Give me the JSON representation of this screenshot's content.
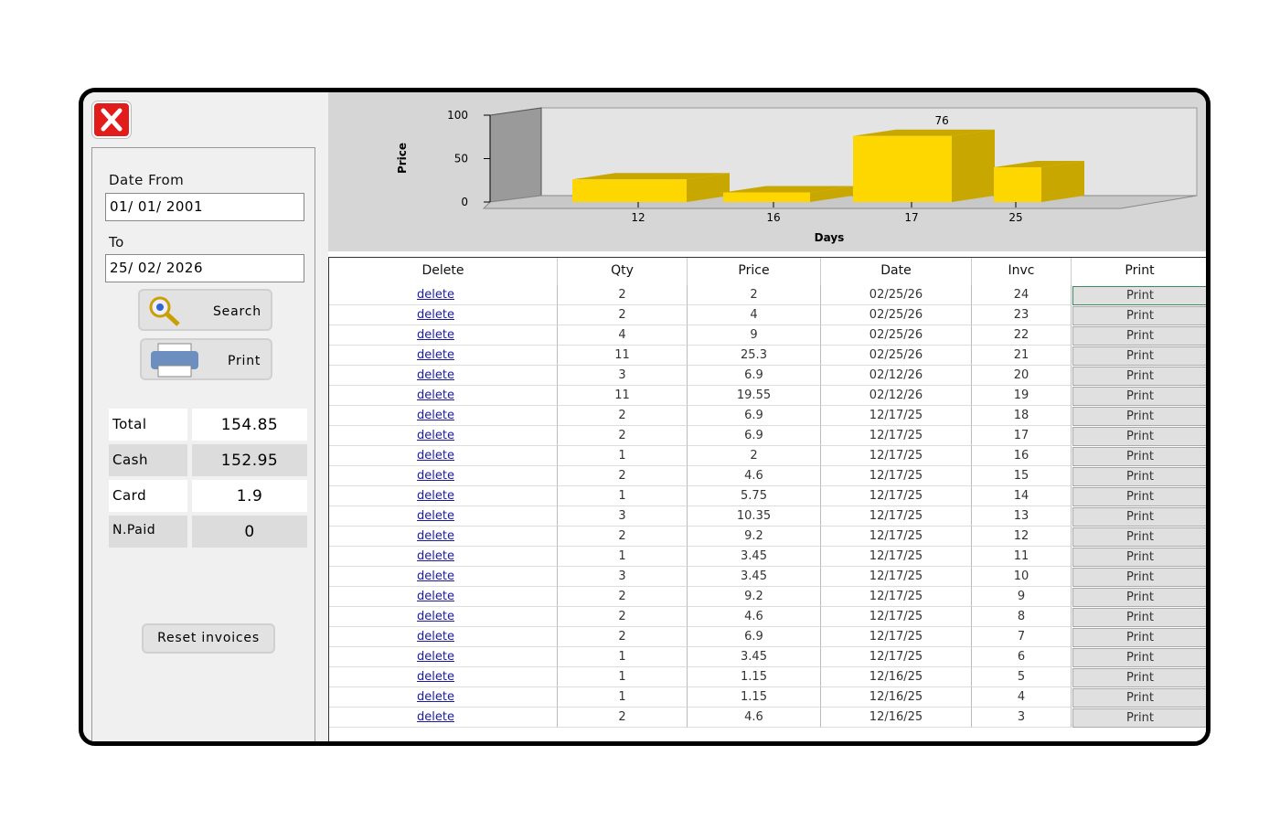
{
  "sidebar": {
    "date_from_label": "Date From",
    "date_from": "01/ 01/ 2001",
    "to_label": "To",
    "date_to": "25/ 02/ 2026",
    "search": "Search",
    "print": "Print",
    "totals": [
      {
        "label": "Total",
        "value": 154.85
      },
      {
        "label": "Cash",
        "value": 152.95
      },
      {
        "label": "Card",
        "value": 1.9
      },
      {
        "label": "N.Paid",
        "value": 0
      }
    ],
    "reset": "Reset invoices"
  },
  "chart_data": {
    "type": "bar3d",
    "xlabel": "Days",
    "ylabel": "Price",
    "categories": [
      "12",
      "16",
      "17",
      "25"
    ],
    "values": [
      26,
      11,
      76,
      40
    ],
    "value_labels": [
      null,
      null,
      "76",
      null
    ],
    "color": "#ffd700",
    "side_color": "#c8a800",
    "ylim": [
      0,
      100
    ],
    "yticks": [
      0,
      50,
      100
    ]
  },
  "table": {
    "headers": [
      "Delete",
      "Qty",
      "Price",
      "Date",
      "Invc",
      "Print"
    ],
    "rows": [
      [
        "delete",
        2,
        2,
        "02/25/26",
        24,
        "Print"
      ],
      [
        "delete",
        2,
        4,
        "02/25/26",
        23,
        "Print"
      ],
      [
        "delete",
        4,
        9,
        "02/25/26",
        22,
        "Print"
      ],
      [
        "delete",
        11,
        25.3,
        "02/25/26",
        21,
        "Print"
      ],
      [
        "delete",
        3,
        6.9,
        "02/12/26",
        20,
        "Print"
      ],
      [
        "delete",
        11,
        19.55,
        "02/12/26",
        19,
        "Print"
      ],
      [
        "delete",
        2,
        6.9,
        "12/17/25",
        18,
        "Print"
      ],
      [
        "delete",
        2,
        6.9,
        "12/17/25",
        17,
        "Print"
      ],
      [
        "delete",
        1,
        2,
        "12/17/25",
        16,
        "Print"
      ],
      [
        "delete",
        2,
        4.6,
        "12/17/25",
        15,
        "Print"
      ],
      [
        "delete",
        1,
        5.75,
        "12/17/25",
        14,
        "Print"
      ],
      [
        "delete",
        3,
        10.35,
        "12/17/25",
        13,
        "Print"
      ],
      [
        "delete",
        2,
        9.2,
        "12/17/25",
        12,
        "Print"
      ],
      [
        "delete",
        1,
        3.45,
        "12/17/25",
        11,
        "Print"
      ],
      [
        "delete",
        3,
        3.45,
        "12/17/25",
        10,
        "Print"
      ],
      [
        "delete",
        2,
        9.2,
        "12/17/25",
        9,
        "Print"
      ],
      [
        "delete",
        2,
        4.6,
        "12/17/25",
        8,
        "Print"
      ],
      [
        "delete",
        2,
        6.9,
        "12/17/25",
        7,
        "Print"
      ],
      [
        "delete",
        1,
        3.45,
        "12/17/25",
        6,
        "Print"
      ],
      [
        "delete",
        1,
        1.15,
        "12/16/25",
        5,
        "Print"
      ],
      [
        "delete",
        1,
        1.15,
        "12/16/25",
        4,
        "Print"
      ],
      [
        "delete",
        2,
        4.6,
        "12/16/25",
        3,
        "Print"
      ]
    ]
  }
}
